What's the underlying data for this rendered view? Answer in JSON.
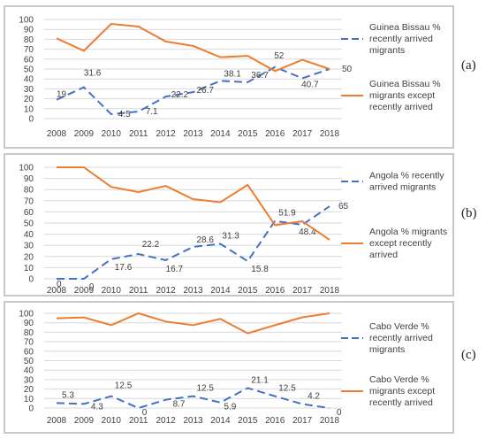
{
  "panel_labels": [
    "(a)",
    "(b)",
    "(c)"
  ],
  "colors": {
    "recent": "#4472C4",
    "except": "#ED7D31",
    "grid": "#d9d9d9",
    "frame": "#c8c8c8"
  },
  "chart_data": [
    {
      "type": "line",
      "x": [
        "2008",
        "2009",
        "2010",
        "2011",
        "2012",
        "2013",
        "2014",
        "2015",
        "2016",
        "2017",
        "2018"
      ],
      "ylim": [
        0,
        100
      ],
      "yticks": [
        0,
        10,
        20,
        30,
        40,
        50,
        60,
        70,
        80,
        90,
        100
      ],
      "series": [
        {
          "name": "Guinea Bissau % recently arrived migrants",
          "style": "dashed",
          "values": [
            19,
            31.6,
            4.5,
            7.1,
            22.2,
            26.7,
            38.1,
            36.7,
            52,
            40.7,
            50
          ],
          "labels": [
            "19",
            "31.6",
            "4.5",
            "7.1",
            "22.2",
            "26.7",
            "38.1",
            "36.7",
            "52",
            "40.7",
            "50"
          ]
        },
        {
          "name": "Guinea Bissau % migrants except recently arrived",
          "style": "solid",
          "values": [
            81,
            68.4,
            95.5,
            92.9,
            77.8,
            73.3,
            61.9,
            63.3,
            48,
            59.3,
            50
          ]
        }
      ]
    },
    {
      "type": "line",
      "x": [
        "2008",
        "2009",
        "2010",
        "2011",
        "2012",
        "2013",
        "2014",
        "2015",
        "2016",
        "2017",
        "2018"
      ],
      "ylim": [
        0,
        100
      ],
      "yticks": [
        0,
        10,
        20,
        30,
        40,
        50,
        60,
        70,
        80,
        90,
        100
      ],
      "series": [
        {
          "name": "Angola % recently arrived migrants",
          "style": "dashed",
          "values": [
            0,
            0,
            17.6,
            22.2,
            16.7,
            28.6,
            31.3,
            15.8,
            51.9,
            48.4,
            65
          ],
          "labels": [
            "0",
            "0",
            "17.6",
            "22.2",
            "16.7",
            "28.6",
            "31.3",
            "15.8",
            "51.9",
            "48.4",
            "65"
          ]
        },
        {
          "name": "Angola % migrants except recently arrived",
          "style": "solid",
          "values": [
            100,
            100,
            82.4,
            77.8,
            83.3,
            71.4,
            68.7,
            84.2,
            48.1,
            51.6,
            35
          ]
        }
      ]
    },
    {
      "type": "line",
      "x": [
        "2008",
        "2009",
        "2010",
        "2011",
        "2012",
        "2013",
        "2014",
        "2015",
        "2016",
        "2017",
        "2018"
      ],
      "ylim": [
        0,
        100
      ],
      "yticks": [
        0,
        10,
        20,
        30,
        40,
        50,
        60,
        70,
        80,
        90,
        100
      ],
      "series": [
        {
          "name": "Cabo Verde % recently arrived migrants",
          "style": "dashed",
          "values": [
            5.3,
            4.3,
            12.5,
            0,
            8.7,
            12.5,
            5.9,
            21.1,
            12.5,
            4.2,
            0
          ],
          "labels": [
            "5.3",
            "4.3",
            "12.5",
            "0",
            "8.7",
            "12.5",
            "5.9",
            "21.1",
            "12.5",
            "4.2",
            "0"
          ]
        },
        {
          "name": "Cabo Verde % migrants except recently arrived",
          "style": "solid",
          "values": [
            94.7,
            95.7,
            87.5,
            100,
            91.3,
            87.5,
            94.1,
            78.9,
            87.5,
            95.8,
            100
          ]
        }
      ]
    }
  ]
}
